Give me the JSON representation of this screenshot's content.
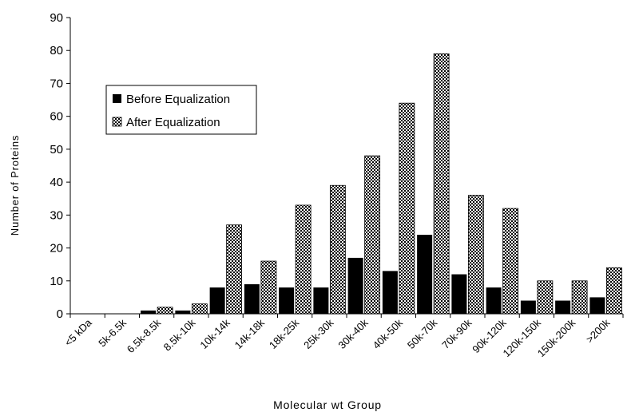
{
  "chart_data": {
    "type": "bar",
    "xlabel": "Molecular wt Group",
    "ylabel": "Number of Proteins",
    "ylim": [
      0,
      90
    ],
    "yticks": [
      0,
      10,
      20,
      30,
      40,
      50,
      60,
      70,
      80,
      90
    ],
    "grid": false,
    "legend_position": "left",
    "categories": [
      "<5 kDa",
      "5k-6.5k",
      "6.5k-8.5k",
      "8.5k-10k",
      "10k-14k",
      "14k-18k",
      "18k-25k",
      "25k-30k",
      "30k-40k",
      "40k-50k",
      "50k-70k",
      "70k-90k",
      "90k-120k",
      "120k-150k",
      "150k-200k",
      ">200k"
    ],
    "series": [
      {
        "name": "Before Equalization",
        "color": "#000000",
        "pattern": "solid",
        "values": [
          0,
          0,
          1,
          1,
          8,
          9,
          8,
          8,
          17,
          13,
          24,
          12,
          8,
          4,
          4,
          5
        ]
      },
      {
        "name": "After Equalization",
        "color": "#000000",
        "pattern": "checkerboard",
        "values": [
          0,
          0,
          2,
          3,
          27,
          16,
          33,
          39,
          48,
          64,
          79,
          36,
          32,
          10,
          10,
          14
        ]
      }
    ]
  }
}
